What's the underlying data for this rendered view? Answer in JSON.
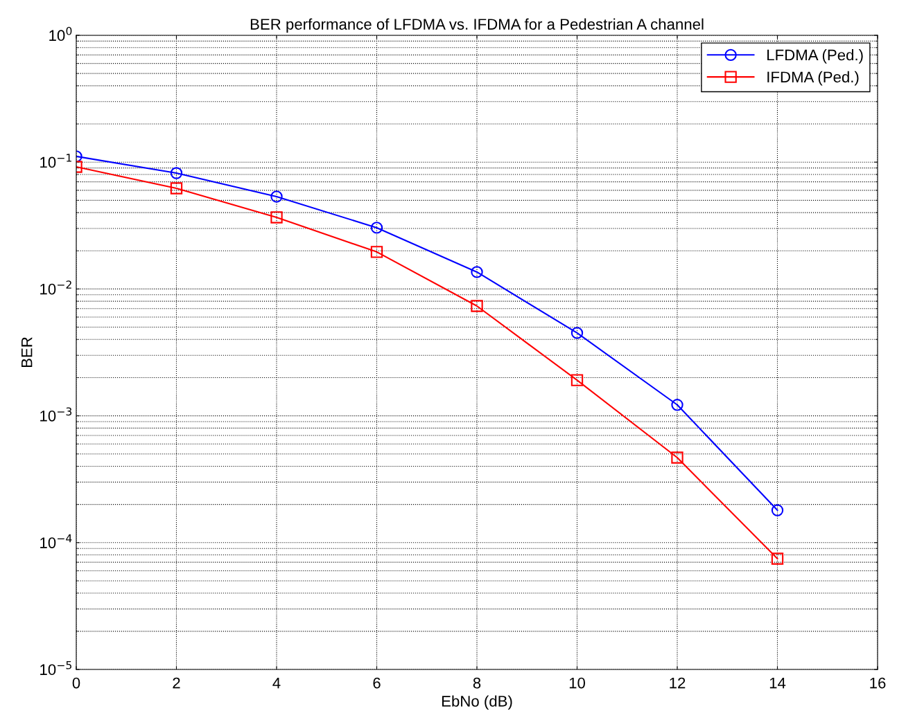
{
  "chart_data": {
    "type": "line",
    "title": "BER performance of LFDMA vs. IFDMA for a Pedestrian A channel",
    "xlabel": "EbNo (dB)",
    "ylabel": "BER",
    "x": [
      0,
      2,
      4,
      6,
      8,
      10,
      12,
      14
    ],
    "series": [
      {
        "name": "LFDMA (Ped.)",
        "color": "#0000ff",
        "marker": "circle",
        "values": [
          0.111,
          0.082,
          0.0535,
          0.0304,
          0.0136,
          0.0045,
          0.00122,
          0.00018
        ]
      },
      {
        "name": "IFDMA (Ped.)",
        "color": "#ff0000",
        "marker": "square",
        "values": [
          0.0918,
          0.0622,
          0.0367,
          0.0196,
          0.00734,
          0.00191,
          0.000468,
          7.47e-05
        ]
      }
    ],
    "log": "y",
    "xlim": [
      0,
      16
    ],
    "xticks": [
      0,
      2,
      4,
      6,
      8,
      10,
      12,
      14,
      16
    ],
    "ylim": [
      1e-05,
      1
    ],
    "yticks": [
      {
        "value": 1e-05,
        "label": "10$^{−5}$"
      },
      {
        "value": 0.0001,
        "label": "10$^{−4}$"
      },
      {
        "value": 0.001,
        "label": "10$^{−3}$"
      },
      {
        "value": 0.01,
        "label": "10$^{−2}$"
      },
      {
        "value": 0.1,
        "label": "10$^{−1}$"
      },
      {
        "value": 1,
        "label": "10$^{0}$"
      }
    ],
    "grid": true,
    "legend": "top right",
    "line_style": "solid"
  }
}
